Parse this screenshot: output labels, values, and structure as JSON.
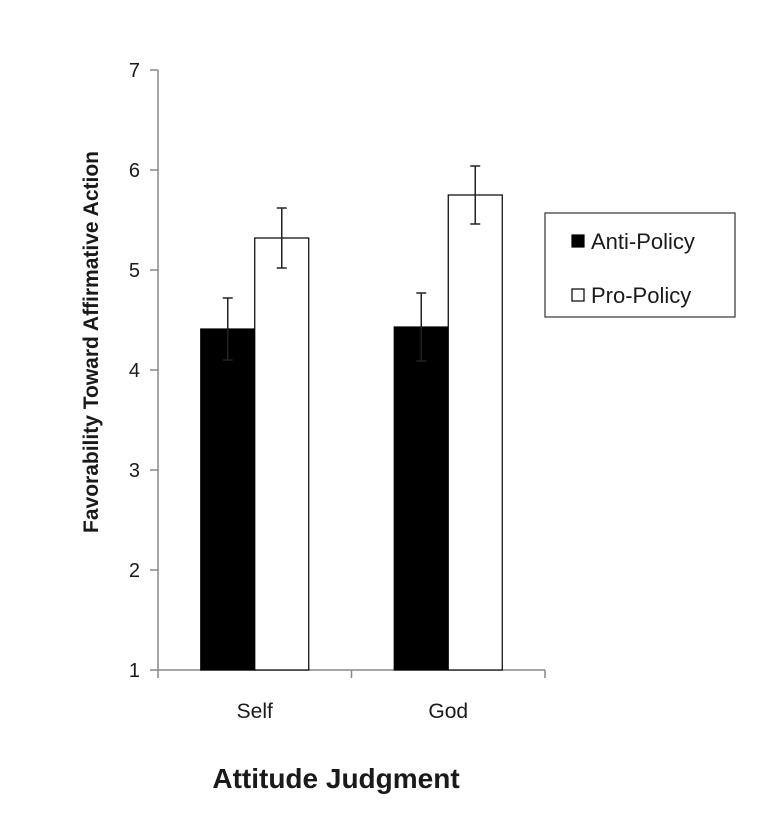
{
  "chart_data": {
    "type": "bar",
    "categories": [
      "Self",
      "God"
    ],
    "series": [
      {
        "name": "Anti-Policy",
        "values": [
          4.41,
          4.43
        ],
        "errors": [
          0.31,
          0.34
        ],
        "color": "#000000"
      },
      {
        "name": "Pro-Policy",
        "values": [
          5.32,
          5.75
        ],
        "errors": [
          0.3,
          0.29
        ],
        "color": "#ffffff"
      }
    ],
    "title": "",
    "xlabel": "Attitude Judgment",
    "ylabel": "Favorability Toward Affirmative Action",
    "ylim": [
      1,
      7
    ],
    "yticks": [
      "1",
      "2",
      "3",
      "4",
      "5",
      "6",
      "7"
    ],
    "grid": false,
    "legend_position": "right"
  }
}
